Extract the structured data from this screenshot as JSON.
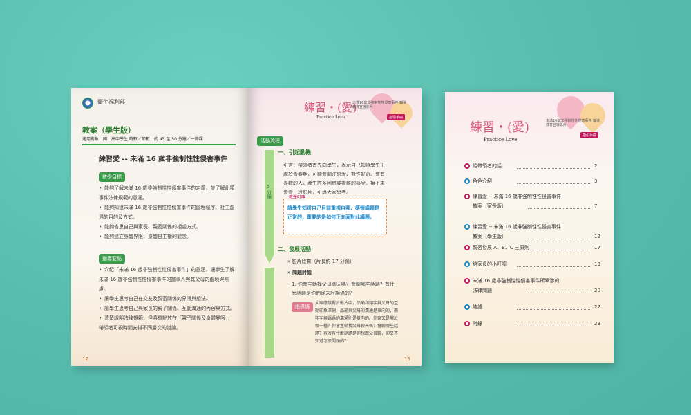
{
  "left_page": {
    "ministry": "衛生福利部",
    "title": "教案（學生版）",
    "subtitle": "適用對象：國、高中學生  時數／節數：約 45 至 50 分鐘／一節課",
    "lesson_title": "練習愛 -- 未滿 16 歲非強制性性侵害事件",
    "section1_tag": "教學目標",
    "section1_items": [
      "能夠了解未滿 16 歲非強制性性侵害事件的定義，並了解此類事件法律規範的意涵。",
      "能夠知道未滿 16 歲非強制性性侵害事件的處理程序、社工處遇的目的及方式。",
      "能夠省思自己與家長、親密關係的相處方式。",
      "能夠建立身體界限、身體自主權的觀念。"
    ],
    "section2_tag": "指導要點",
    "section2_items": [
      "介紹「未滿 16 歲非強制性性侵害事件」的意涵，讓學生了解未滿 16 歲非強制性性侵害事件的當事人與其父母的處境與焦慮。",
      "讓學生思考自己在交友及親密關係的界限與想法。",
      "讓學生思考自己與家長的親子關係、互動溝通的內容與方式。",
      "清楚說明法律規範，但將重點放在「親子關係及身體界限」，帶領者可視時間安排不同層次的討論。"
    ],
    "page_number": "12"
  },
  "right_page": {
    "brand_title": "練習‧(愛)",
    "brand_sub": "Practice Love",
    "header_small": "未滿16歲非強制性性侵害事件  輔導教育宣導影片",
    "badge": "指引手冊",
    "activity_tag": "活動流程",
    "step1": "一、引起動機",
    "time_label": "5分鐘",
    "step1_text": "引言：帶領者首先向學生，表示自己知道學生正處於青春期，可能會關注戀愛、對性好奇、會有喜歡的人，產生許多困惑或複雜的感受。接下來會看一段影片，引導大家思考。",
    "note_tag": "教學叮嚀",
    "note_text": "讓學生知道自己目前重視自我、感情議題是正常的，重要的是如何正向面對此議題。",
    "step2": "二、發展活動",
    "video": "影片欣賞（片長約 17 分鐘）",
    "discussion": "問題討論",
    "q1": "1. 你會主動找父母聊天嗎？會聊哪些話題？有什麼話題是你們從未討論過的？",
    "hint_tag": "指導語",
    "hint_text": "大家應該對於影片中，品瑜和翔宇與父母的互動印象深刻，品瑜與父母的溝通是單向的，而翔宇與媽媽的溝通則是雙向的。你家又是屬於哪一種？你會主動找父母聊天嗎？會聊哪些話題？有沒有什麼話題是你想跟父母聊，卻又不知道怎麼開頭的？",
    "page_number": "13"
  },
  "toc_page": {
    "brand_title": "練習‧(愛)",
    "brand_sub": "Practice Love",
    "header_small": "未滿16歲非強制性性侵害事件  輔導教育宣導影片",
    "badge": "指引手冊",
    "items": [
      {
        "label": "給帶領者的話",
        "page": "2",
        "color": "pink"
      },
      {
        "label": "角色介紹",
        "page": "3",
        "color": "blue"
      },
      {
        "label": "練習愛 -- 未滿 16 歲非強制性性侵害事件",
        "label2": "教案（家長版）",
        "page": "7",
        "color": "pink"
      },
      {
        "label": "練習愛 -- 未滿 16 歲非強制性性侵害事件",
        "label2": "教案（學生版）",
        "page": "12",
        "color": "blue"
      },
      {
        "label": "親密發展 A、B、C 三原則",
        "page": "17",
        "color": "pink"
      },
      {
        "label": "給家長的小叮嚀",
        "page": "19",
        "color": "blue"
      },
      {
        "label": "未滿 16 歲非強制性性侵害事件所牽涉的",
        "label2": "法律問題",
        "page": "20",
        "color": "pink"
      },
      {
        "label": "結語",
        "page": "22",
        "color": "blue"
      },
      {
        "label": "附錄",
        "page": "23",
        "color": "pink"
      }
    ]
  },
  "colors": {
    "background": "#5cc0b1",
    "green": "#3a9b4a",
    "pink": "#c2185b",
    "blue": "#1e88c8"
  }
}
